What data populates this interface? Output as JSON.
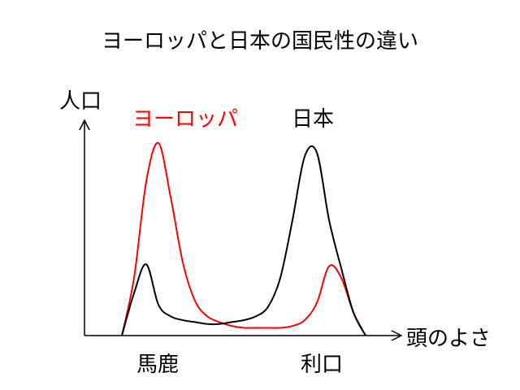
{
  "chart_data": {
    "type": "line",
    "title": "ヨーロッパと日本の国民性の違い",
    "xlabel": "頭のよさ",
    "ylabel": "人口",
    "x_tick_labels": [
      {
        "label": "馬鹿",
        "x": 0.1
      },
      {
        "label": "利口",
        "x": 0.85
      }
    ],
    "xlim": [
      0,
      1
    ],
    "ylim": [
      0,
      1
    ],
    "grid": false,
    "series": [
      {
        "name": "ヨーロッパ",
        "color": "#ff0000",
        "x": [
          0.0,
          0.05,
          0.1,
          0.15,
          0.2,
          0.25,
          0.3,
          0.35,
          0.4,
          0.45,
          0.5,
          0.55,
          0.6,
          0.65,
          0.7,
          0.75,
          0.8,
          0.85,
          0.9,
          0.95,
          1.0
        ],
        "values": [
          0.0,
          0.3,
          0.8,
          1.0,
          0.72,
          0.38,
          0.18,
          0.1,
          0.07,
          0.05,
          0.04,
          0.04,
          0.04,
          0.04,
          0.05,
          0.08,
          0.17,
          0.36,
          0.3,
          0.12,
          0.0
        ]
      },
      {
        "name": "日本",
        "color": "#000000",
        "x": [
          0.0,
          0.05,
          0.1,
          0.15,
          0.2,
          0.25,
          0.3,
          0.35,
          0.4,
          0.45,
          0.5,
          0.55,
          0.6,
          0.65,
          0.7,
          0.75,
          0.8,
          0.85,
          0.9,
          0.95,
          1.0
        ],
        "values": [
          0.0,
          0.22,
          0.37,
          0.16,
          0.1,
          0.08,
          0.07,
          0.06,
          0.06,
          0.07,
          0.08,
          0.1,
          0.15,
          0.3,
          0.6,
          0.93,
          0.95,
          0.6,
          0.35,
          0.12,
          0.0
        ]
      }
    ]
  }
}
